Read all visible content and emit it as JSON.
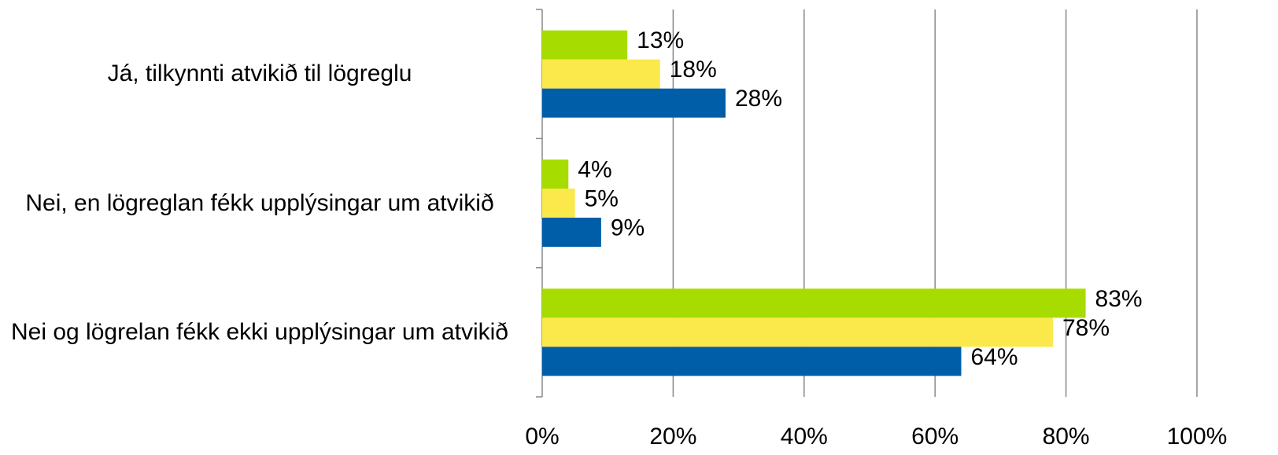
{
  "chart_data": {
    "type": "bar",
    "orientation": "horizontal",
    "categories": [
      "Já, tilkynnti atvikið til lögreglu",
      "Nei, en lögreglan fékk upplýsingar um atvikið",
      "Nei og lögrelan fékk ekki upplýsingar um atvikið"
    ],
    "series": [
      {
        "color": "#a6dc00",
        "values": [
          13,
          4,
          83
        ],
        "value_labels": [
          "13%",
          "4%",
          "83%"
        ]
      },
      {
        "color": "#fbe84b",
        "values": [
          18,
          5,
          78
        ],
        "value_labels": [
          "18%",
          "5%",
          "78%"
        ]
      },
      {
        "color": "#005da8",
        "values": [
          28,
          9,
          64
        ],
        "value_labels": [
          "28%",
          "9%",
          "64%"
        ]
      }
    ],
    "xlim": [
      0,
      100
    ],
    "xticks": [
      {
        "value": 0,
        "label": "0%"
      },
      {
        "value": 20,
        "label": "20%"
      },
      {
        "value": 40,
        "label": "40%"
      },
      {
        "value": 60,
        "label": "60%"
      },
      {
        "value": 80,
        "label": "80%"
      },
      {
        "value": 100,
        "label": "100%"
      }
    ],
    "grid": true
  }
}
